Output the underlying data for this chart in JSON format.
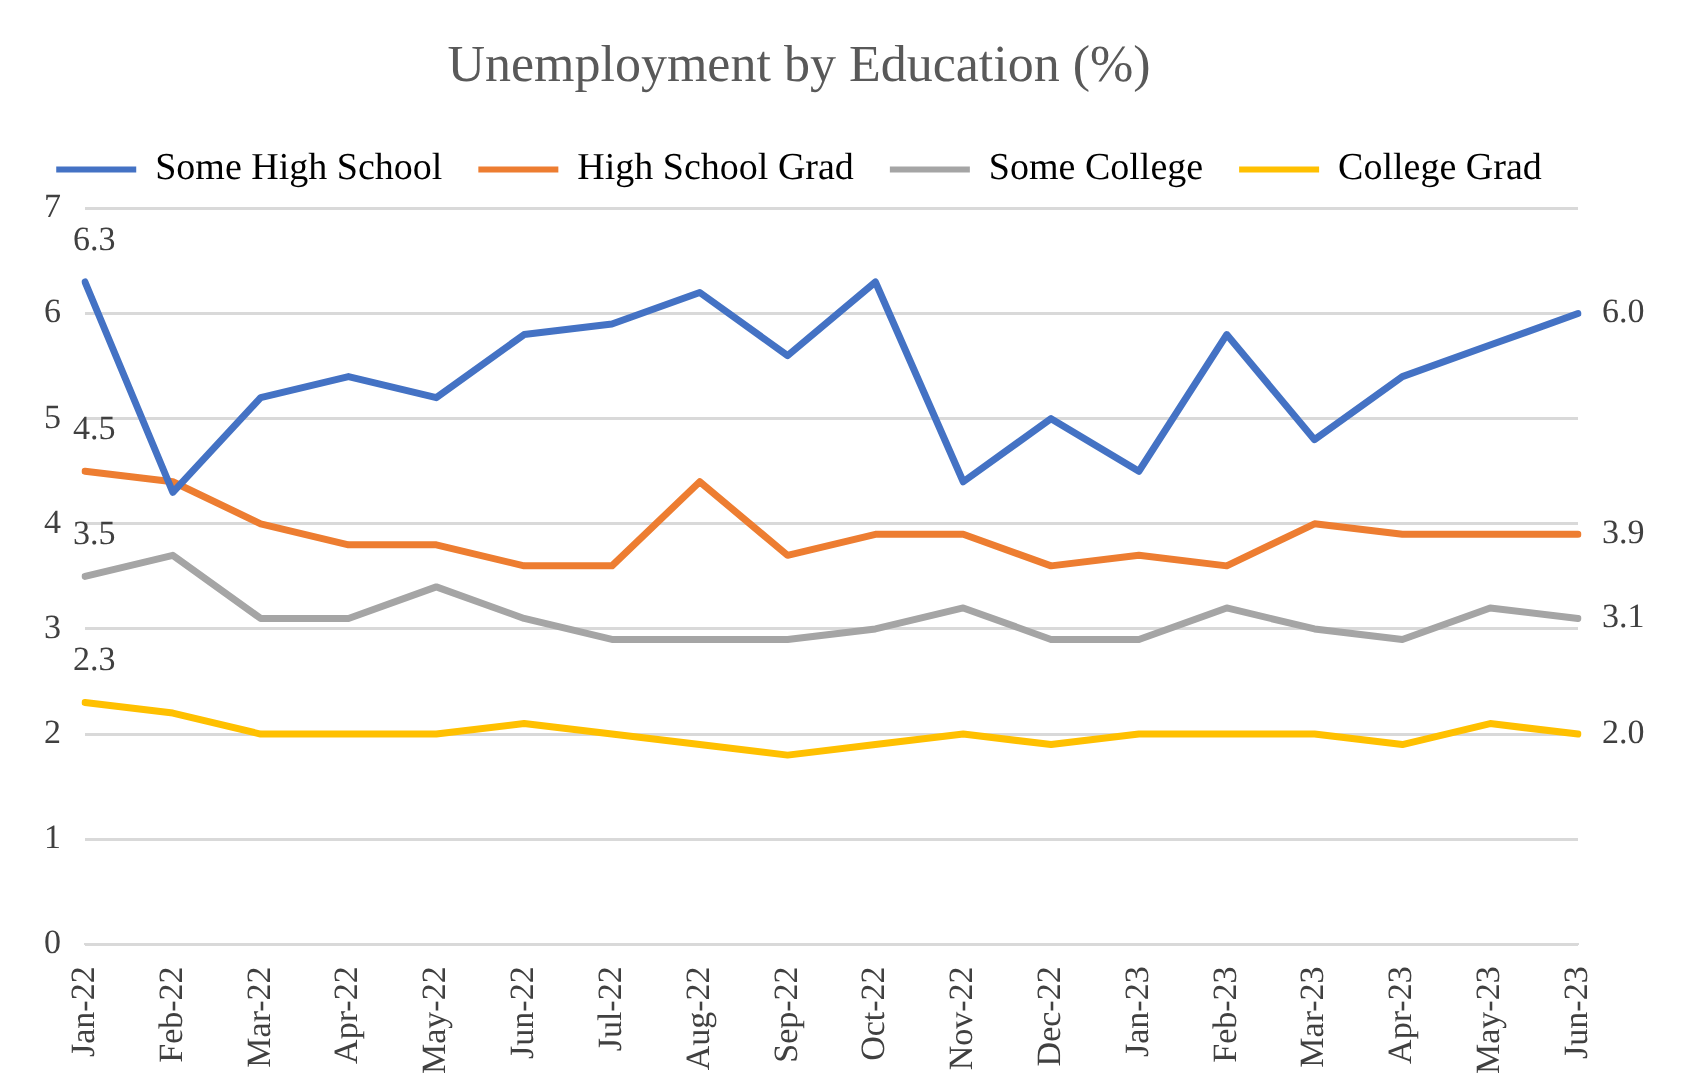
{
  "chart_data": {
    "type": "line",
    "title": "Unemployment by Education (%)",
    "categories": [
      "Jan-22",
      "Feb-22",
      "Mar-22",
      "Apr-22",
      "May-22",
      "Jun-22",
      "Jul-22",
      "Aug-22",
      "Sep-22",
      "Oct-22",
      "Nov-22",
      "Dec-22",
      "Jan-23",
      "Feb-23",
      "Mar-23",
      "Apr-23",
      "May-23",
      "Jun-23"
    ],
    "series": [
      {
        "name": "Some High School",
        "color": "#4472c4",
        "values": [
          6.3,
          4.3,
          5.2,
          5.4,
          5.2,
          5.8,
          5.9,
          6.2,
          5.6,
          6.3,
          4.4,
          5.0,
          4.5,
          5.8,
          4.8,
          5.4,
          5.7,
          6.0
        ],
        "value_labels": [
          "6.3",
          null,
          null,
          null,
          null,
          null,
          null,
          null,
          null,
          null,
          null,
          null,
          null,
          null,
          null,
          null,
          null,
          "6.0"
        ]
      },
      {
        "name": "High School Grad",
        "color": "#ed7d31",
        "values": [
          4.5,
          4.4,
          4.0,
          3.8,
          3.8,
          3.6,
          3.6,
          4.4,
          3.7,
          3.9,
          3.9,
          3.6,
          3.7,
          3.6,
          4.0,
          3.9,
          3.9,
          3.9
        ],
        "value_labels": [
          "4.5",
          null,
          null,
          null,
          null,
          null,
          null,
          null,
          null,
          null,
          null,
          null,
          null,
          null,
          null,
          null,
          null,
          "3.9"
        ]
      },
      {
        "name": "Some College",
        "color": "#a5a5a5",
        "values": [
          3.5,
          3.7,
          3.1,
          3.1,
          3.4,
          3.1,
          2.9,
          2.9,
          2.9,
          3.0,
          3.2,
          2.9,
          2.9,
          3.2,
          3.0,
          2.9,
          3.2,
          3.1
        ],
        "value_labels": [
          "3.5",
          null,
          null,
          null,
          null,
          null,
          null,
          null,
          null,
          null,
          null,
          null,
          null,
          null,
          null,
          null,
          null,
          "3.1"
        ]
      },
      {
        "name": "College Grad",
        "color": "#ffc000",
        "values": [
          2.3,
          2.2,
          2.0,
          2.0,
          2.0,
          2.1,
          2.0,
          1.9,
          1.8,
          1.9,
          2.0,
          1.9,
          2.0,
          2.0,
          2.0,
          1.9,
          2.1,
          2.0
        ],
        "value_labels": [
          "2.3",
          null,
          null,
          null,
          null,
          null,
          null,
          null,
          null,
          null,
          null,
          null,
          null,
          null,
          null,
          null,
          null,
          "2.0"
        ]
      }
    ],
    "ylim": [
      0,
      7
    ],
    "yticks": [
      0,
      1,
      2,
      3,
      4,
      5,
      6,
      7
    ],
    "grid": "y",
    "legend": "top",
    "marker": "none",
    "line_style": "solid"
  }
}
